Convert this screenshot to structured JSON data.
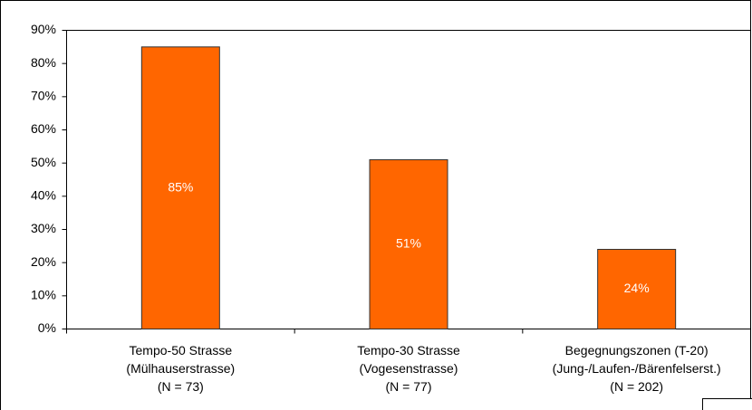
{
  "chart_data": {
    "type": "bar",
    "categories": [
      [
        "Tempo-50 Strasse",
        "(Mülhauserstrasse)",
        "(N = 73)"
      ],
      [
        "Tempo-30 Strasse",
        "(Vogesenstrasse)",
        "(N = 77)"
      ],
      [
        "Begegnungszonen (T-20)",
        "(Jung-/Laufen-/Bärenfelserst.)",
        "(N = 202)"
      ]
    ],
    "values": [
      85,
      51,
      24
    ],
    "value_labels": [
      "85%",
      "51%",
      "24%"
    ],
    "color": "#ff6600",
    "ylim": [
      0,
      90
    ],
    "yticks": [
      {
        "value": 0,
        "label": "0%"
      },
      {
        "value": 10,
        "label": "10%"
      },
      {
        "value": 20,
        "label": "20%"
      },
      {
        "value": 30,
        "label": "30%"
      },
      {
        "value": 40,
        "label": "40%"
      },
      {
        "value": 50,
        "label": "50%"
      },
      {
        "value": 60,
        "label": "60%"
      },
      {
        "value": 70,
        "label": "70%"
      },
      {
        "value": 80,
        "label": "80%"
      },
      {
        "value": 90,
        "label": "90%"
      }
    ],
    "grid": false
  }
}
